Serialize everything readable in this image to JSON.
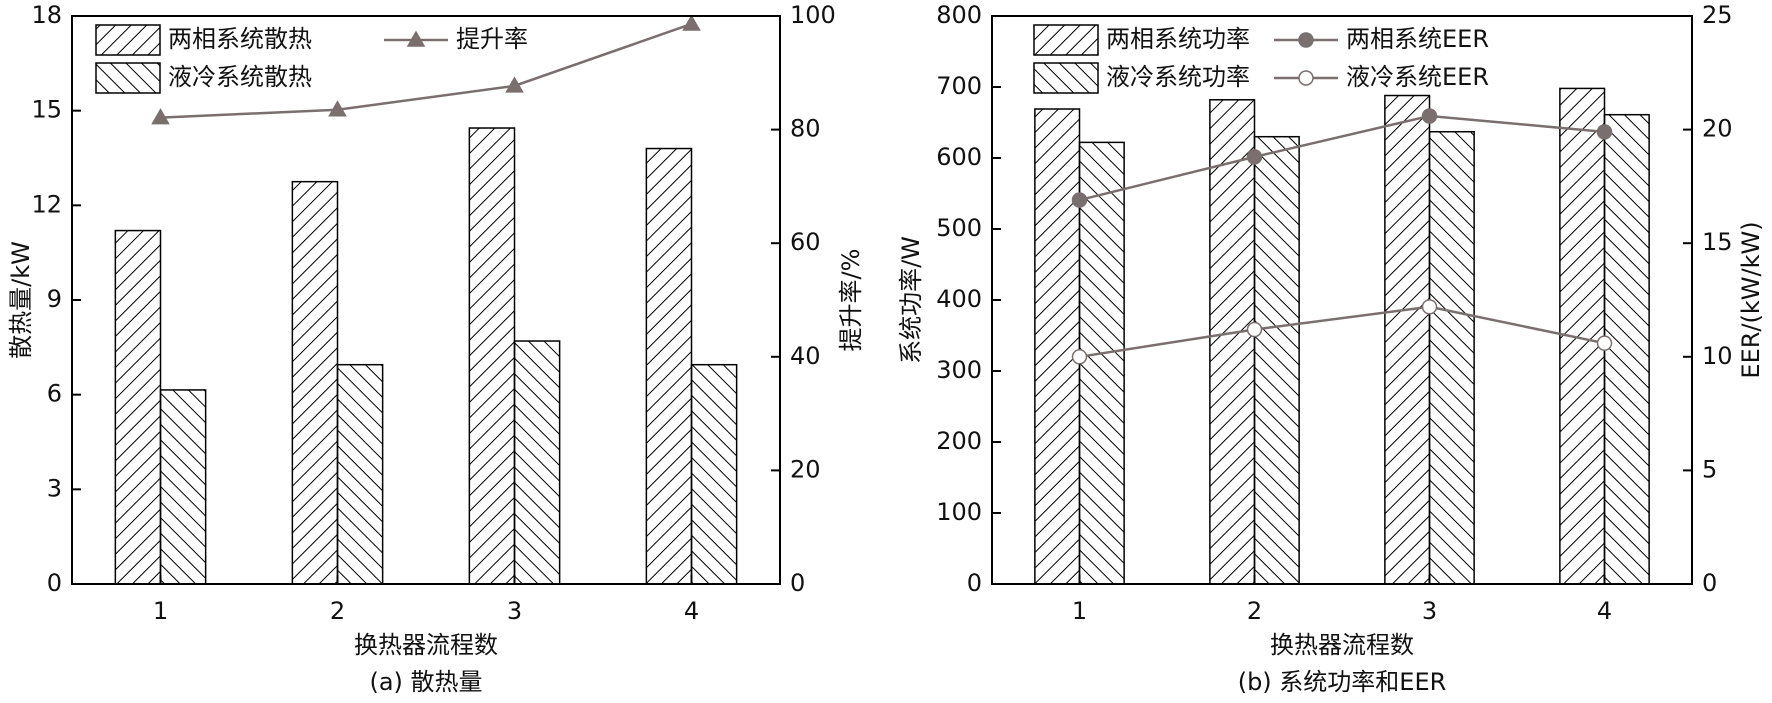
{
  "chart_data": [
    {
      "type": "bar",
      "title": "(a) 散热量",
      "xlabel": "换热器流程数",
      "ylabel": "散热量/kW",
      "y2label": "提升率/%",
      "categories": [
        "1",
        "2",
        "3",
        "4"
      ],
      "ylim": [
        0,
        18
      ],
      "yticks": [
        0,
        3,
        6,
        9,
        12,
        15,
        18
      ],
      "y2lim": [
        0,
        100
      ],
      "y2ticks": [
        0,
        20,
        40,
        60,
        80,
        100
      ],
      "series": [
        {
          "name": "两相系统散热",
          "color": "#000000",
          "hatch": "forward",
          "values": [
            11.2,
            12.75,
            14.45,
            13.8
          ]
        },
        {
          "name": "液冷系统散热",
          "color": "#000000",
          "hatch": "backward",
          "values": [
            6.15,
            6.95,
            7.7,
            6.95
          ]
        },
        {
          "name": "提升率",
          "type": "line",
          "axis": "y2",
          "color": "#7a6f6f",
          "marker": "triangle",
          "marker_fill": "#7a6f6f",
          "values": [
            82.1,
            83.5,
            87.7,
            98.6
          ]
        }
      ]
    },
    {
      "type": "bar",
      "title": "(b) 系统功率和EER",
      "xlabel": "换热器流程数",
      "ylabel": "系统功率/W",
      "y2label": "EER/(kW/kW)",
      "categories": [
        "1",
        "2",
        "3",
        "4"
      ],
      "ylim": [
        0,
        800
      ],
      "yticks": [
        0,
        100,
        200,
        300,
        400,
        500,
        600,
        700,
        800
      ],
      "y2lim": [
        0,
        25
      ],
      "y2ticks": [
        0,
        5,
        10,
        15,
        20,
        25
      ],
      "series": [
        {
          "name": "两相系统功率",
          "color": "#000000",
          "hatch": "forward",
          "values": [
            669,
            682,
            688,
            698
          ]
        },
        {
          "name": "液冷系统功率",
          "color": "#000000",
          "hatch": "backward",
          "values": [
            622,
            630,
            637,
            661
          ]
        },
        {
          "name": "两相系统EER",
          "type": "line",
          "axis": "y2",
          "color": "#7a6f6f",
          "marker": "circle",
          "marker_fill": "#7a6f6f",
          "values": [
            16.9,
            18.8,
            20.6,
            19.9
          ]
        },
        {
          "name": "液冷系统EER",
          "type": "line",
          "axis": "y2",
          "color": "#7a6f6f",
          "marker": "circle",
          "marker_fill": "#ffffff",
          "values": [
            10.0,
            11.2,
            12.2,
            10.6
          ]
        }
      ]
    }
  ]
}
